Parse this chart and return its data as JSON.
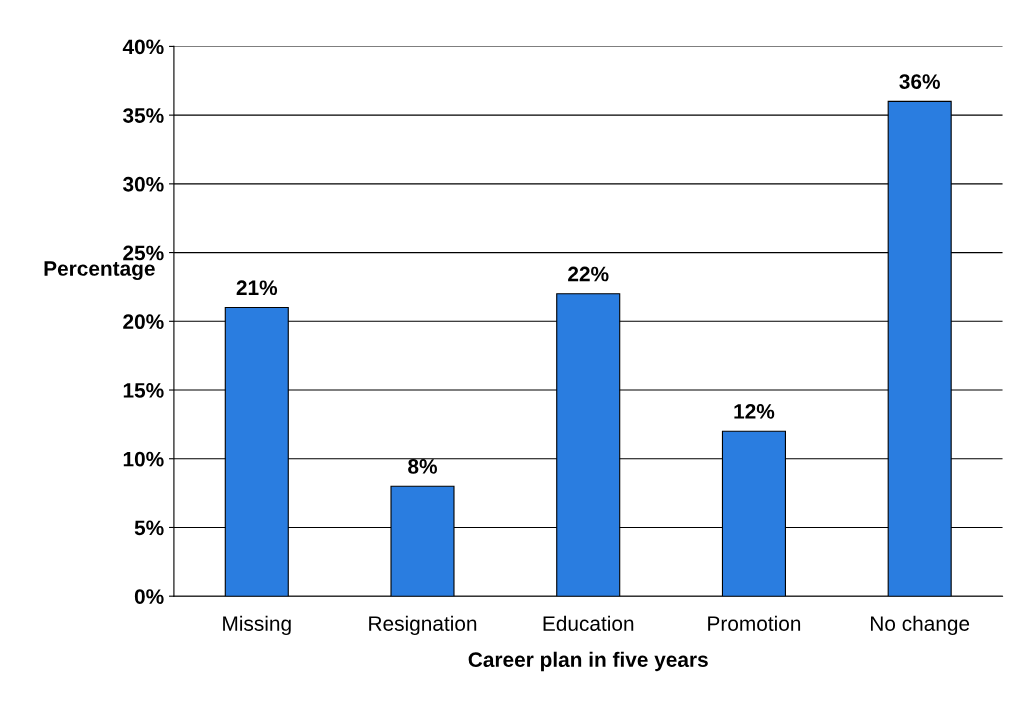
{
  "chart_data": {
    "type": "bar",
    "categories": [
      "Missing",
      "Resignation",
      "Education",
      "Promotion",
      "No change"
    ],
    "values": [
      21,
      8,
      22,
      12,
      36
    ],
    "value_labels": [
      "21%",
      "8%",
      "22%",
      "12%",
      "36%"
    ],
    "color": "#2a7de0",
    "xlabel": "Career plan in five years",
    "ylabel": "Percentage",
    "ylim": [
      0,
      40
    ],
    "yticks": [
      {
        "value": 0,
        "label": "0%"
      },
      {
        "value": 5,
        "label": "5%"
      },
      {
        "value": 10,
        "label": "10%"
      },
      {
        "value": 15,
        "label": "15%"
      },
      {
        "value": 20,
        "label": "20%"
      },
      {
        "value": 25,
        "label": "25%"
      },
      {
        "value": 30,
        "label": "30%"
      },
      {
        "value": 35,
        "label": "35%"
      },
      {
        "value": 40,
        "label": "40%"
      }
    ],
    "grid": "y"
  }
}
